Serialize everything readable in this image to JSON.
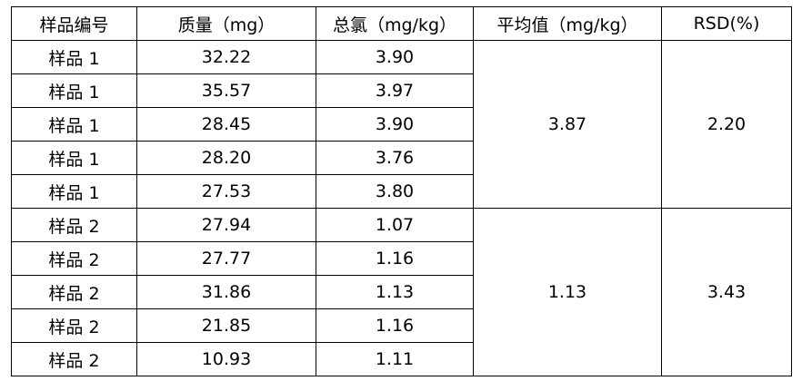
{
  "table": {
    "headers": [
      "样品编号",
      "质量（mg）",
      "总氯（mg/kg）",
      "平均值（mg/kg）",
      "RSD(%)"
    ],
    "groups": [
      {
        "rows": [
          [
            "样品 1",
            "32.22",
            "3.90"
          ],
          [
            "样品 1",
            "35.57",
            "3.97"
          ],
          [
            "样品 1",
            "28.45",
            "3.90"
          ],
          [
            "样品 1",
            "28.20",
            "3.76"
          ],
          [
            "样品 1",
            "27.53",
            "3.80"
          ]
        ],
        "mean": "3.87",
        "rsd": "2.20"
      },
      {
        "rows": [
          [
            "样品 2",
            "27.94",
            "1.07"
          ],
          [
            "样品 2",
            "27.77",
            "1.16"
          ],
          [
            "样品 2",
            "31.86",
            "1.13"
          ],
          [
            "样品 2",
            "21.85",
            "1.16"
          ],
          [
            "样品 2",
            "10.93",
            "1.11"
          ]
        ],
        "mean": "1.13",
        "rsd": "3.43"
      }
    ]
  }
}
